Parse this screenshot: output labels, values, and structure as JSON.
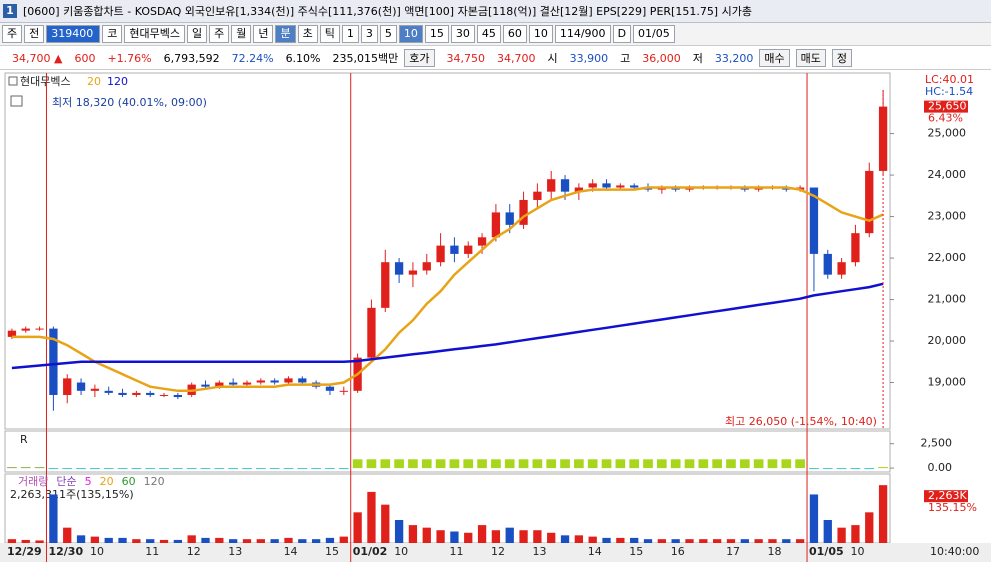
{
  "title_bar": {
    "number": "1",
    "text": "[0600] 키움종합차트 - KOSDAQ 외국인보유[1,334(천)] 주식수[111,376(천)] 액면[100] 자본금[118(억)] 결산[12월] EPS[229] PER[151.75] 시가총"
  },
  "toolbar": {
    "items": [
      "주",
      "전",
      "319400",
      "코",
      "현대무벡스",
      "일",
      "주",
      "월",
      "년",
      "분",
      "초",
      "틱",
      "1",
      "3",
      "5",
      "10",
      "15",
      "30",
      "45",
      "60",
      "10",
      "114/900",
      "D",
      "01/05"
    ]
  },
  "quote": {
    "items": [
      "34,700 ▲",
      "600",
      "+1.76%",
      "6,793,592",
      "72.24%",
      "6.10%",
      "235,015백만",
      "호가",
      "34,750",
      "34,700",
      "시",
      "33,900",
      "고",
      "36,000",
      "저",
      "33,200",
      "매수",
      "매도",
      "정"
    ]
  },
  "chart_data": {
    "type": "candlestick",
    "name": "현대무벡스",
    "categories": [
      "12/29",
      null,
      null,
      "12/30",
      null,
      null,
      "10",
      null,
      null,
      null,
      "11",
      null,
      null,
      "12",
      null,
      null,
      "13",
      null,
      null,
      null,
      "14",
      null,
      null,
      "15",
      null,
      "01/02",
      null,
      null,
      "10",
      null,
      null,
      null,
      "11",
      null,
      null,
      "12",
      null,
      null,
      "13",
      null,
      null,
      null,
      "14",
      null,
      null,
      "15",
      null,
      null,
      "16",
      null,
      null,
      null,
      "17",
      null,
      null,
      "18",
      null,
      null,
      "01/05",
      null,
      null,
      "10",
      null,
      null
    ],
    "open": [
      20100,
      20250,
      20300,
      20300,
      18700,
      19000,
      18800,
      18800,
      18750,
      18700,
      18750,
      18700,
      18700,
      18700,
      18950,
      18900,
      19000,
      18950,
      19000,
      19050,
      19000,
      19100,
      19000,
      18900,
      18800,
      18800,
      19600,
      20800,
      21900,
      21600,
      21700,
      21900,
      22300,
      22100,
      22300,
      22500,
      23100,
      22800,
      23400,
      23600,
      23900,
      23600,
      23700,
      23800,
      23700,
      23750,
      23700,
      23650,
      23700,
      23650,
      23700,
      23700,
      23700,
      23700,
      23650,
      23700,
      23700,
      23650,
      23700,
      22100,
      21600,
      21900,
      22600,
      24100
    ],
    "high": [
      20300,
      20350,
      20350,
      20350,
      19200,
      19100,
      18950,
      18900,
      18850,
      18800,
      18800,
      18750,
      18750,
      19000,
      19050,
      19050,
      19100,
      19050,
      19100,
      19100,
      19150,
      19150,
      19050,
      18950,
      18900,
      19700,
      21000,
      22200,
      22000,
      21900,
      22100,
      22600,
      22500,
      22400,
      22600,
      23300,
      23300,
      23600,
      23800,
      24100,
      24000,
      23800,
      23900,
      23900,
      23800,
      23800,
      23800,
      23750,
      23750,
      23750,
      23750,
      23750,
      23750,
      23750,
      23750,
      23750,
      23750,
      23750,
      23700,
      22200,
      22000,
      22800,
      24300,
      26050
    ],
    "low": [
      20050,
      20200,
      20250,
      18320,
      18500,
      18700,
      18650,
      18700,
      18650,
      18650,
      18650,
      18650,
      18600,
      18650,
      18850,
      18850,
      18900,
      18900,
      18950,
      18950,
      18950,
      18950,
      18850,
      18700,
      18700,
      18750,
      19500,
      20700,
      21400,
      21300,
      21600,
      21800,
      21900,
      22000,
      22100,
      22400,
      22600,
      22700,
      23200,
      23400,
      23400,
      23400,
      23600,
      23650,
      23650,
      23650,
      23600,
      23550,
      23600,
      23600,
      23650,
      23650,
      23650,
      23600,
      23600,
      23650,
      23600,
      23600,
      21200,
      21500,
      21500,
      21800,
      22500,
      24000
    ],
    "close": [
      20250,
      20300,
      20300,
      18700,
      19100,
      18800,
      18850,
      18750,
      18700,
      18750,
      18700,
      18700,
      18650,
      18950,
      18900,
      19000,
      18950,
      19000,
      19050,
      19000,
      19100,
      19000,
      18900,
      18800,
      18800,
      19600,
      20800,
      21900,
      21600,
      21700,
      21900,
      22300,
      22100,
      22300,
      22500,
      23100,
      22800,
      23400,
      23600,
      23900,
      23600,
      23700,
      23800,
      23700,
      23750,
      23700,
      23650,
      23700,
      23650,
      23700,
      23700,
      23700,
      23700,
      23650,
      23700,
      23700,
      23650,
      23700,
      22100,
      21600,
      21900,
      22600,
      24100,
      25650
    ],
    "series": [
      {
        "name": "20",
        "color": "#e8a317",
        "values": [
          20100,
          20100,
          20100,
          20050,
          19900,
          19700,
          19500,
          19350,
          19200,
          19050,
          18900,
          18850,
          18800,
          18800,
          18850,
          18900,
          18900,
          18900,
          18900,
          18900,
          18950,
          18950,
          18950,
          18950,
          19000,
          19200,
          19500,
          19800,
          20200,
          20500,
          20900,
          21200,
          21600,
          21900,
          22200,
          22500,
          22700,
          23000,
          23200,
          23400,
          23500,
          23600,
          23650,
          23650,
          23650,
          23650,
          23700,
          23700,
          23700,
          23700,
          23700,
          23700,
          23700,
          23700,
          23700,
          23700,
          23700,
          23650,
          23500,
          23300,
          23100,
          23000,
          22900,
          23050
        ]
      },
      {
        "name": "120",
        "color": "#1010d0",
        "values": [
          19350,
          19380,
          19410,
          19440,
          19470,
          19500,
          19500,
          19500,
          19500,
          19500,
          19500,
          19500,
          19500,
          19500,
          19500,
          19500,
          19500,
          19500,
          19500,
          19500,
          19500,
          19500,
          19500,
          19500,
          19500,
          19520,
          19560,
          19600,
          19640,
          19680,
          19720,
          19760,
          19800,
          19840,
          19880,
          19920,
          19970,
          20020,
          20070,
          20120,
          20170,
          20220,
          20270,
          20320,
          20370,
          20420,
          20470,
          20520,
          20570,
          20620,
          20670,
          20720,
          20770,
          20820,
          20870,
          20920,
          20970,
          21020,
          21100,
          21150,
          21200,
          21250,
          21300,
          21380
        ]
      }
    ],
    "ylim": [
      17880,
      26460
    ],
    "yticks": [
      {
        "value": 19000,
        "label": "19,000"
      },
      {
        "value": 20000,
        "label": "20,000"
      },
      {
        "value": 21000,
        "label": "21,000"
      },
      {
        "value": 22000,
        "label": "22,000"
      },
      {
        "value": 23000,
        "label": "23,000"
      },
      {
        "value": 24000,
        "label": "24,000"
      },
      {
        "value": 25000,
        "label": "25,000"
      }
    ],
    "low_label": "최저 18,320 (40.01%, 09:00)",
    "high_label": "최고 26,050 (-1.54%, 10:40)",
    "lc_label": "LC:40.01",
    "hc_label": "HC:-1.54",
    "last_price_label": "25,650",
    "last_change_label": "6.43%",
    "time_label": "10:40:00",
    "oscillator": {
      "name": "R",
      "values": [
        100,
        100,
        100,
        -80,
        -80,
        -80,
        -80,
        -80,
        -80,
        -80,
        -80,
        -80,
        -80,
        -80,
        -80,
        -80,
        -80,
        -80,
        -80,
        -80,
        -80,
        -80,
        -80,
        -80,
        -80,
        900,
        900,
        900,
        900,
        900,
        900,
        900,
        900,
        900,
        900,
        900,
        900,
        900,
        900,
        900,
        900,
        900,
        900,
        900,
        900,
        900,
        900,
        900,
        900,
        900,
        900,
        900,
        900,
        900,
        900,
        900,
        900,
        900,
        -80,
        -80,
        -80,
        -80,
        -80,
        100
      ],
      "ylim": [
        -400,
        3800
      ],
      "yticks": [
        {
          "value": 2500,
          "label": "2,500"
        },
        {
          "value": 0,
          "label": "0.00"
        }
      ]
    },
    "volume": {
      "legend": [
        "거래량",
        "단순",
        "5",
        "20",
        "60",
        "120"
      ],
      "info": "2,263,311주(135,15%)",
      "last_label": "2,263K",
      "last_pct_label": "135.15%",
      "ylim": [
        0,
        2700000
      ],
      "values": [
        150000,
        120000,
        100000,
        1900000,
        600000,
        300000,
        250000,
        200000,
        200000,
        150000,
        150000,
        120000,
        120000,
        300000,
        200000,
        200000,
        150000,
        150000,
        150000,
        150000,
        200000,
        150000,
        150000,
        200000,
        250000,
        1200000,
        2000000,
        1500000,
        900000,
        700000,
        600000,
        500000,
        450000,
        400000,
        700000,
        500000,
        600000,
        500000,
        500000,
        400000,
        300000,
        300000,
        250000,
        200000,
        200000,
        200000,
        150000,
        150000,
        150000,
        150000,
        150000,
        150000,
        150000,
        150000,
        150000,
        150000,
        150000,
        150000,
        1900000,
        900000,
        600000,
        700000,
        1200000,
        2263311
      ]
    }
  }
}
